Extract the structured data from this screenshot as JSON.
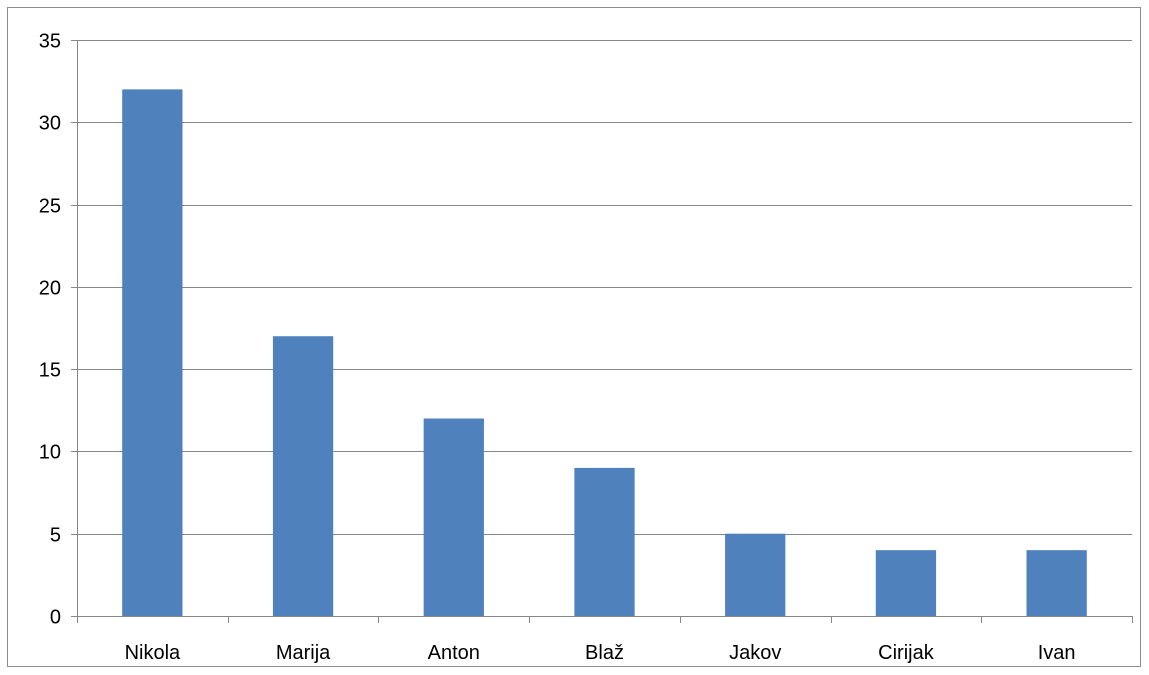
{
  "chart_data": {
    "type": "bar",
    "title": "",
    "xlabel": "",
    "ylabel": "",
    "categories": [
      "Nikola",
      "Marija",
      "Anton",
      "Blaž",
      "Jakov",
      "Cirijak",
      "Ivan"
    ],
    "values": [
      32,
      17,
      12,
      9,
      5,
      4,
      4
    ],
    "ylim": [
      0,
      35
    ],
    "yticks": [
      0,
      5,
      10,
      15,
      20,
      25,
      30,
      35
    ],
    "grid": "horizontal",
    "legend": "none",
    "bar_color": "#4f81bd",
    "grid_color": "#878787",
    "axis_color": "#878787"
  }
}
